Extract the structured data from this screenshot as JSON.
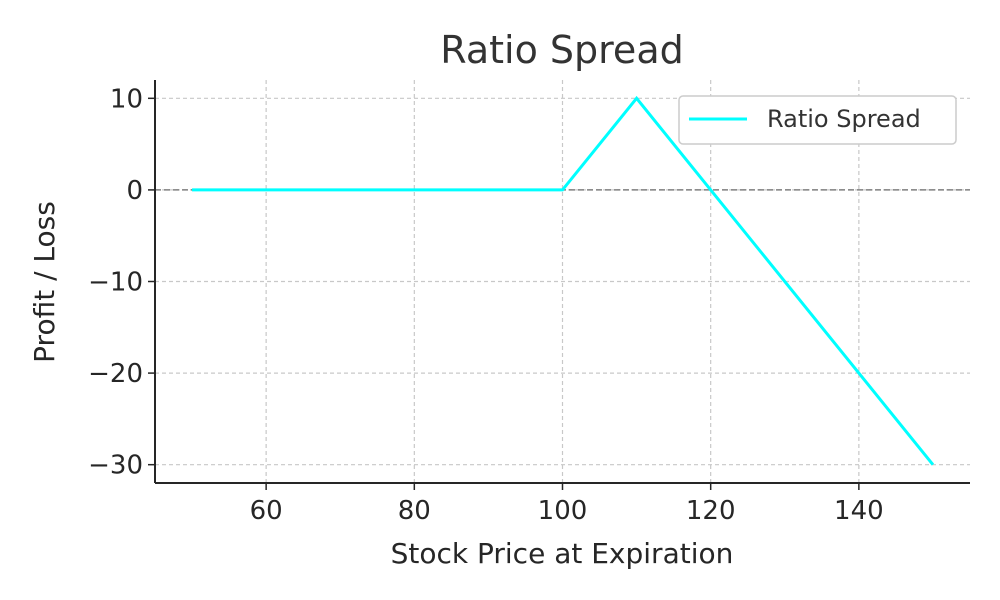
{
  "chart_data": {
    "type": "line",
    "title": "Ratio Spread",
    "xlabel": "Stock Price at Expiration",
    "ylabel": "Profit / Loss",
    "xlim": [
      45,
      155
    ],
    "ylim": [
      -32,
      12
    ],
    "xticks": [
      60,
      80,
      100,
      120,
      140
    ],
    "yticks": [
      10,
      0,
      -10,
      -20,
      -30
    ],
    "xtick_labels": [
      "60",
      "80",
      "100",
      "120",
      "140"
    ],
    "ytick_labels": [
      "10",
      "0",
      "−10",
      "−20",
      "−30"
    ],
    "grid": true,
    "zero_line": true,
    "legend_position": "top-right",
    "series": [
      {
        "name": "Ratio Spread",
        "color": "#00ffff",
        "x": [
          50,
          100,
          110,
          120,
          150
        ],
        "y": [
          0,
          0,
          10,
          0,
          -30
        ]
      }
    ],
    "colors": {
      "grid": "#c8c8c8",
      "axis": "#262626",
      "zero_line": "#808080"
    }
  }
}
